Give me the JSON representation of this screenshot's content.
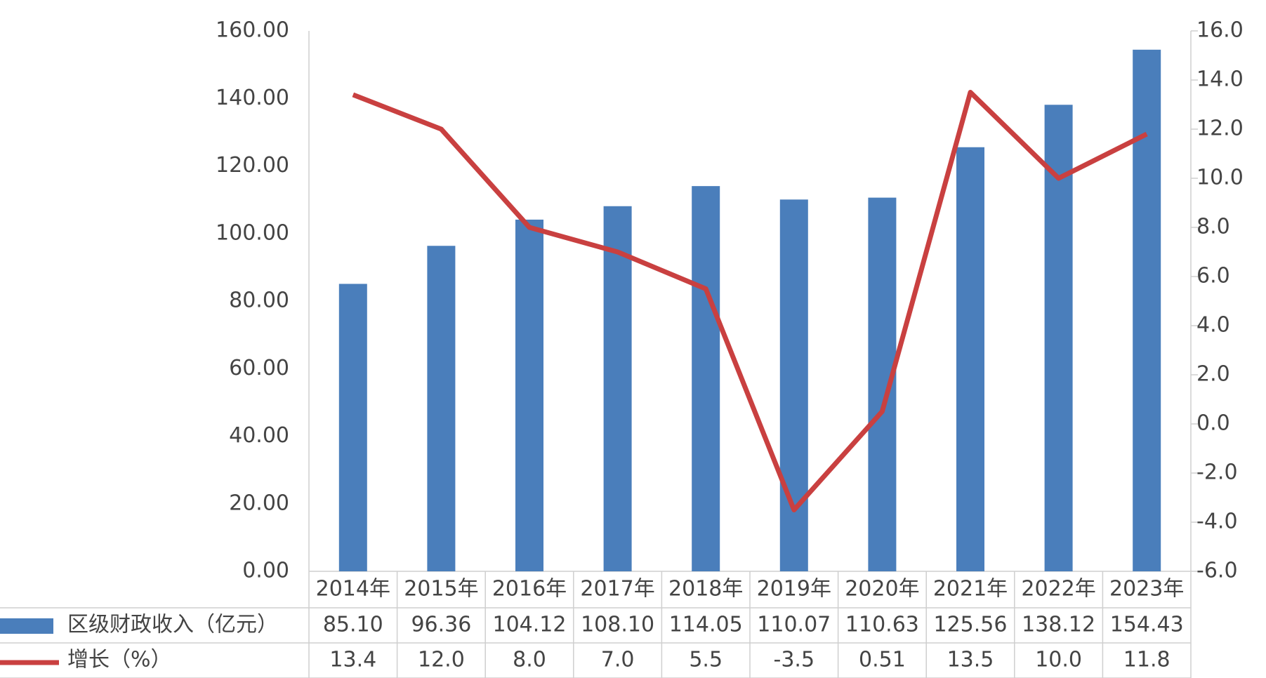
{
  "chart_data": {
    "type": "bar",
    "categories": [
      "2014年",
      "2015年",
      "2016年",
      "2017年",
      "2018年",
      "2019年",
      "2020年",
      "2021年",
      "2022年",
      "2023年"
    ],
    "series": [
      {
        "name": "区级财政收入（亿元）",
        "type": "bar",
        "color": "#4a7ebb",
        "values": [
          85.1,
          96.36,
          104.12,
          108.1,
          114.05,
          110.07,
          110.63,
          125.56,
          138.12,
          154.43
        ],
        "value_labels": [
          "85.10",
          "96.36",
          "104.12",
          "108.10",
          "114.05",
          "110.07",
          "110.63",
          "125.56",
          "138.12",
          "154.43"
        ]
      },
      {
        "name": "增长（%）",
        "type": "line",
        "axis": "y2",
        "color": "#c94040",
        "values": [
          13.4,
          12.0,
          8.0,
          7.0,
          5.5,
          -3.5,
          0.51,
          13.5,
          10.0,
          11.8
        ],
        "value_labels": [
          "13.4",
          "12.0",
          "8.0",
          "7.0",
          "5.5",
          "-3.5",
          "0.51",
          "13.5",
          "10.0",
          "11.8"
        ]
      }
    ],
    "ylim": [
      0,
      160
    ],
    "yticks": [
      {
        "value": 0,
        "label": "0.00"
      },
      {
        "value": 20,
        "label": "20.00"
      },
      {
        "value": 40,
        "label": "40.00"
      },
      {
        "value": 60,
        "label": "60.00"
      },
      {
        "value": 80,
        "label": "80.00"
      },
      {
        "value": 100,
        "label": "100.00"
      },
      {
        "value": 120,
        "label": "120.00"
      },
      {
        "value": 140,
        "label": "140.00"
      },
      {
        "value": 160,
        "label": "160.00"
      }
    ],
    "y2lim": [
      -6,
      16
    ],
    "y2ticks": [
      {
        "value": -6,
        "label": "-6.0"
      },
      {
        "value": -4,
        "label": "-4.0"
      },
      {
        "value": -2,
        "label": "-2.0"
      },
      {
        "value": 0,
        "label": "0.0"
      },
      {
        "value": 2,
        "label": "2.0"
      },
      {
        "value": 4,
        "label": "4.0"
      },
      {
        "value": 6,
        "label": "6.0"
      },
      {
        "value": 8,
        "label": "8.0"
      },
      {
        "value": 10,
        "label": "10.0"
      },
      {
        "value": 12,
        "label": "12.0"
      },
      {
        "value": 14,
        "label": "14.0"
      },
      {
        "value": 16,
        "label": "16.0"
      }
    ],
    "grid": false
  }
}
